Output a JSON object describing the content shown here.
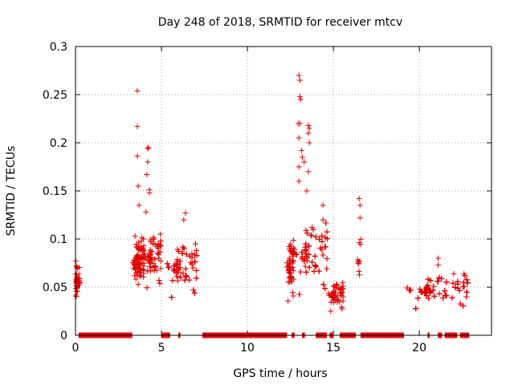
{
  "chart_data": {
    "type": "scatter",
    "title": "Day 248 of 2018, SRMTID for receiver mtcv",
    "xlabel": "GPS time / hours",
    "ylabel": "SRMTID / TECUs",
    "xlim": [
      0,
      24.2
    ],
    "ylim": [
      0,
      0.3
    ],
    "x_ticks": [
      0,
      5,
      10,
      15,
      20
    ],
    "y_ticks": [
      0,
      0.05,
      0.1,
      0.15,
      0.2,
      0.25,
      0.3
    ],
    "y_tick_labels": [
      "0",
      "0.05",
      "0.1",
      "0.15",
      "0.2",
      "0.25",
      "0.3"
    ],
    "grid": true,
    "marker": "+",
    "color": "#e00000",
    "clusters": [
      {
        "x": [
          0.0,
          0.25
        ],
        "y": [
          0.03,
          0.087
        ],
        "n": 40
      },
      {
        "x": [
          3.3,
          4.0
        ],
        "y": [
          0.035,
          0.11
        ],
        "n": 90
      },
      {
        "x": [
          4.0,
          5.0
        ],
        "y": [
          0.04,
          0.115
        ],
        "n": 90
      },
      {
        "x": [
          5.3,
          7.1
        ],
        "y": [
          0.03,
          0.105
        ],
        "n": 170
      },
      {
        "x": [
          12.3,
          12.7
        ],
        "y": [
          0.025,
          0.11
        ],
        "n": 60
      },
      {
        "x": [
          12.7,
          14.7
        ],
        "y": [
          0.03,
          0.13
        ],
        "n": 200
      },
      {
        "x": [
          14.7,
          15.6
        ],
        "y": [
          0.02,
          0.06
        ],
        "n": 60
      },
      {
        "x": [
          16.4,
          16.6
        ],
        "y": [
          0.03,
          0.12
        ],
        "n": 10
      },
      {
        "x": [
          19.2,
          22.9
        ],
        "y": [
          0.022,
          0.068
        ],
        "n": 330
      }
    ],
    "outliers": [
      {
        "x": 3.6,
        "y": 0.254
      },
      {
        "x": 3.6,
        "y": 0.217
      },
      {
        "x": 3.6,
        "y": 0.186
      },
      {
        "x": 3.65,
        "y": 0.155
      },
      {
        "x": 3.7,
        "y": 0.135
      },
      {
        "x": 4.2,
        "y": 0.194
      },
      {
        "x": 4.25,
        "y": 0.195
      },
      {
        "x": 4.2,
        "y": 0.18
      },
      {
        "x": 4.15,
        "y": 0.167
      },
      {
        "x": 4.3,
        "y": 0.151
      },
      {
        "x": 4.3,
        "y": 0.148
      },
      {
        "x": 4.1,
        "y": 0.128
      },
      {
        "x": 6.4,
        "y": 0.127
      },
      {
        "x": 6.3,
        "y": 0.12
      },
      {
        "x": 13.0,
        "y": 0.27
      },
      {
        "x": 13.05,
        "y": 0.265
      },
      {
        "x": 13.05,
        "y": 0.248
      },
      {
        "x": 13.1,
        "y": 0.245
      },
      {
        "x": 12.95,
        "y": 0.22
      },
      {
        "x": 13.05,
        "y": 0.22
      },
      {
        "x": 13.55,
        "y": 0.218
      },
      {
        "x": 13.6,
        "y": 0.215
      },
      {
        "x": 13.55,
        "y": 0.21
      },
      {
        "x": 13.6,
        "y": 0.2
      },
      {
        "x": 13.15,
        "y": 0.192
      },
      {
        "x": 13.3,
        "y": 0.18
      },
      {
        "x": 13.0,
        "y": 0.175
      },
      {
        "x": 13.55,
        "y": 0.17
      },
      {
        "x": 13.0,
        "y": 0.16
      },
      {
        "x": 13.45,
        "y": 0.15
      },
      {
        "x": 14.4,
        "y": 0.135
      },
      {
        "x": 14.4,
        "y": 0.12
      },
      {
        "x": 16.5,
        "y": 0.142
      },
      {
        "x": 16.55,
        "y": 0.135
      },
      {
        "x": 16.55,
        "y": 0.122
      },
      {
        "x": 21.1,
        "y": 0.08
      },
      {
        "x": 21.1,
        "y": 0.073
      },
      {
        "x": 22.0,
        "y": 0.064
      },
      {
        "x": 22.6,
        "y": 0.064
      },
      {
        "x": 13.0,
        "y": 0.205
      },
      {
        "x": 13.2,
        "y": 0.185
      }
    ],
    "zero_segments": [
      [
        0.2,
        3.3
      ],
      [
        5.0,
        5.5
      ],
      [
        6.0,
        6.1
      ],
      [
        7.4,
        12.3
      ],
      [
        12.6,
        12.75
      ],
      [
        13.2,
        13.35
      ],
      [
        14.0,
        14.6
      ],
      [
        14.8,
        15.0
      ],
      [
        15.4,
        16.3
      ],
      [
        16.6,
        19.1
      ],
      [
        20.5,
        20.6
      ],
      [
        21.1,
        21.3
      ],
      [
        21.5,
        22.2
      ],
      [
        22.4,
        22.9
      ]
    ]
  }
}
